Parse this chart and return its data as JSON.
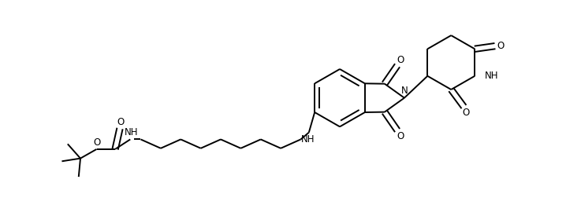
{
  "bg_color": "#ffffff",
  "line_color": "#000000",
  "line_width": 1.4,
  "figsize": [
    7.37,
    2.61
  ],
  "dpi": 100,
  "xlim": [
    0,
    10
  ],
  "ylim": [
    0,
    3.54
  ]
}
